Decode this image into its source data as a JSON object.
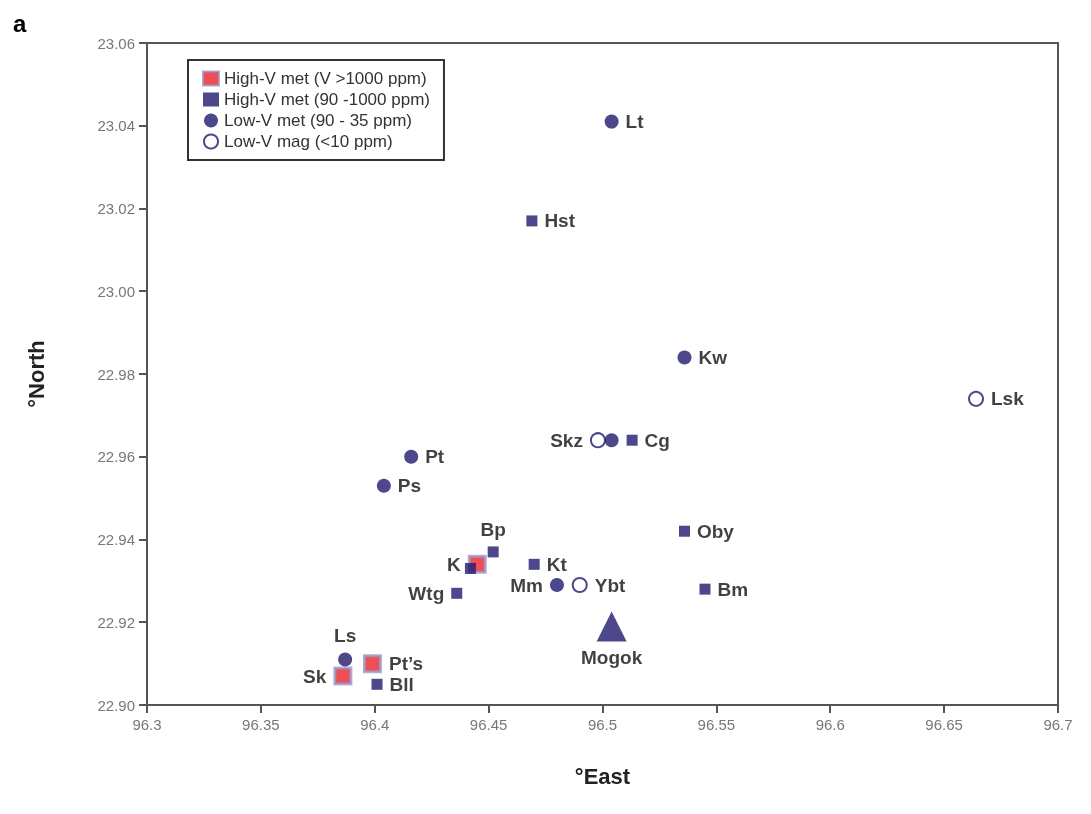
{
  "chart_data": {
    "type": "scatter",
    "title": "a",
    "xlabel": "°East",
    "ylabel": "°North",
    "xlim": [
      96.3,
      96.7
    ],
    "xticks": [
      96.3,
      96.35,
      96.4,
      96.45,
      96.5,
      96.55,
      96.6,
      96.65,
      96.7
    ],
    "ylim": [
      22.9,
      23.06
    ],
    "yticks": [
      {
        "value": 22.9,
        "label": "22.90"
      },
      {
        "value": 22.92,
        "label": "22.92"
      },
      {
        "value": 22.94,
        "label": "22.94"
      },
      {
        "value": 22.96,
        "label": "22.96"
      },
      {
        "value": 22.98,
        "label": "22.98"
      },
      {
        "value": 23.0,
        "label": "23.00"
      },
      {
        "value": 23.02,
        "label": "23.02"
      },
      {
        "value": 23.04,
        "label": "23.04"
      },
      {
        "value": 23.06,
        "label": "23.06"
      }
    ],
    "grid": false,
    "legend": "top left",
    "series": [
      {
        "name": "High-V met (V >1000 ppm)",
        "marker": "square",
        "color": "#e8232a",
        "x": [
          96.445,
          96.399,
          96.386
        ],
        "values": [
          22.934,
          22.91,
          22.907
        ],
        "value_labels": [
          "K",
          "Pt’s",
          "Sk"
        ]
      },
      {
        "name": "High-V met (90 -1000 ppm)",
        "marker": "square",
        "color": "#1f1a6e",
        "x": [
          96.469,
          96.513,
          96.452,
          96.47,
          96.442,
          96.436,
          96.536,
          96.545,
          96.401
        ],
        "values": [
          23.017,
          22.964,
          22.937,
          22.934,
          22.933,
          22.927,
          22.942,
          22.928,
          22.905
        ],
        "value_labels": [
          "Hst",
          "Cg",
          "Bp",
          "Kt",
          null,
          "Wtg",
          "Oby",
          "Bm",
          "Bll"
        ]
      },
      {
        "name": "Low-V met (90 - 35 ppm)",
        "marker": "circle",
        "color": "#1f1a6e",
        "x": [
          96.504,
          96.536,
          96.504,
          96.416,
          96.404,
          96.48,
          96.387
        ],
        "values": [
          23.041,
          22.984,
          22.964,
          22.96,
          22.953,
          22.929,
          22.911
        ],
        "value_labels": [
          "Lt",
          "Kw",
          null,
          "Pt",
          "Ps",
          "Mm",
          "Ls"
        ]
      },
      {
        "name": "Low-V mag (<10 ppm)",
        "marker": "circle",
        "color": "#1f1a6e",
        "x": [
          96.498,
          96.49,
          96.664
        ],
        "values": [
          22.964,
          22.929,
          22.974
        ],
        "value_labels": [
          "Skz",
          "Ybt",
          "Lsk"
        ]
      },
      {
        "marker": "triangle",
        "color": "#1f1a6e",
        "x": [
          96.504
        ],
        "values": [
          22.919
        ],
        "value_labels": [
          "Mogok"
        ]
      }
    ]
  }
}
